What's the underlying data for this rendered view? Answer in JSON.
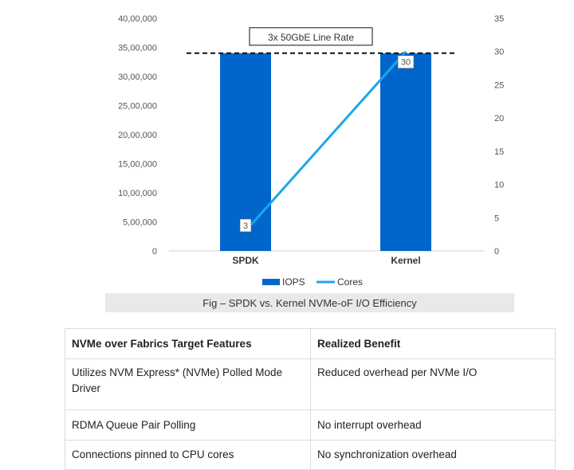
{
  "chart_data": {
    "type": "bar",
    "categories": [
      "SPDK",
      "Kernel"
    ],
    "series": [
      {
        "name": "IOPS",
        "type": "bar",
        "axis": "left",
        "values": [
          3400000,
          3400000
        ],
        "color": "#0066cc"
      },
      {
        "name": "Cores",
        "type": "line",
        "axis": "right",
        "values": [
          3,
          30
        ],
        "color": "#1ba7ea"
      }
    ],
    "data_labels": [
      "3",
      "30"
    ],
    "y_left": {
      "lim": [
        0,
        4000000
      ],
      "ticks": [
        0,
        500000,
        1000000,
        1500000,
        2000000,
        2500000,
        3000000,
        3500000,
        4000000
      ],
      "tick_labels": [
        "0",
        "5,00,000",
        "10,00,000",
        "15,00,000",
        "20,00,000",
        "25,00,000",
        "30,00,000",
        "35,00,000",
        "40,00,000"
      ]
    },
    "y_right": {
      "lim": [
        0,
        35
      ],
      "ticks": [
        0,
        5,
        10,
        15,
        20,
        25,
        30,
        35
      ],
      "tick_labels": [
        "0",
        "5",
        "10",
        "15",
        "20",
        "25",
        "30",
        "35"
      ]
    },
    "reference_line": {
      "label": "3x 50GbE Line Rate",
      "value": 3400000,
      "style": "dashed"
    },
    "grid": false,
    "legend": "bottom"
  },
  "caption": "Fig – SPDK vs. Kernel NVMe-oF I/O Efficiency",
  "table": {
    "headers": [
      "NVMe over Fabrics Target Features",
      "Realized Benefit"
    ],
    "rows": [
      [
        "Utilizes NVM Express* (NVMe) Polled Mode Driver",
        "Reduced overhead per NVMe I/O"
      ],
      [
        "RDMA Queue Pair Polling",
        "No interrupt overhead"
      ],
      [
        "Connections pinned to CPU cores",
        "No synchronization overhead"
      ]
    ]
  }
}
